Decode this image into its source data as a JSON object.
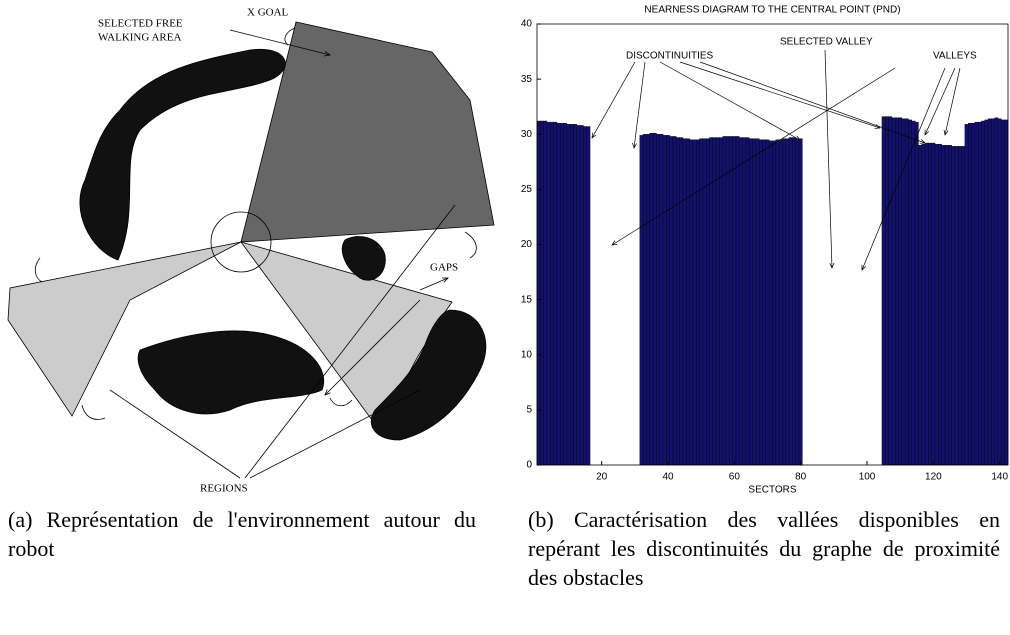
{
  "diagram": {
    "labels": {
      "selected_line1": "SELECTED FREE",
      "selected_line2": "WALKING AREA",
      "goal": "X GOAL",
      "gaps": "GAPS",
      "regions": "REGIONS"
    }
  },
  "captions": [
    "(a) Représentation de l'environnement autour du robot",
    "(b) Caractérisation des vallées disponibles en repérant les discontinuités du graphe de proximité des obstacles"
  ],
  "chart_data": {
    "type": "bar",
    "title": "NEARNESS DIAGRAM TO THE CENTRAL POINT  (PND)",
    "x_label": "SECTORS",
    "annotations": [
      "DISCONTINUITIES",
      "SELECTED VALLEY",
      "VALLEYS"
    ],
    "color": "#12126e",
    "x": [
      1,
      2,
      3,
      4,
      5,
      6,
      7,
      8,
      9,
      10,
      11,
      12,
      13,
      14,
      15,
      16,
      17,
      18,
      19,
      20,
      21,
      22,
      23,
      24,
      25,
      26,
      27,
      28,
      29,
      30,
      31,
      32,
      33,
      34,
      35,
      36,
      37,
      38,
      39,
      40,
      41,
      42,
      43,
      44,
      45,
      46,
      47,
      48,
      49,
      50,
      51,
      52,
      53,
      54,
      55,
      56,
      57,
      58,
      59,
      60,
      61,
      62,
      63,
      64,
      65,
      66,
      67,
      68,
      69,
      70,
      71,
      72,
      73,
      74,
      75,
      76,
      77,
      78,
      79,
      80,
      81,
      82,
      83,
      84,
      85,
      86,
      87,
      88,
      89,
      90,
      91,
      92,
      93,
      94,
      95,
      96,
      97,
      98,
      99,
      100,
      101,
      102,
      103,
      104,
      105,
      106,
      107,
      108,
      109,
      110,
      111,
      112,
      113,
      114,
      115,
      116,
      117,
      118,
      119,
      120,
      121,
      122,
      123,
      124,
      125,
      126,
      127,
      128,
      129,
      130,
      131,
      132,
      133,
      134,
      135,
      136,
      137,
      138,
      139,
      140,
      141,
      142
    ],
    "values": [
      31.2,
      31.2,
      31.2,
      31.1,
      31.1,
      31.1,
      31.0,
      31.0,
      31.0,
      30.9,
      30.9,
      30.9,
      30.8,
      30.8,
      30.7,
      30.7,
      0,
      0,
      0,
      0,
      0,
      0,
      0,
      0,
      0,
      0,
      0,
      0,
      0,
      0,
      0,
      29.9,
      30.0,
      30.0,
      30.1,
      30.1,
      30.0,
      30.0,
      29.9,
      29.9,
      29.8,
      29.8,
      29.7,
      29.7,
      29.6,
      29.6,
      29.5,
      29.5,
      29.5,
      29.6,
      29.6,
      29.6,
      29.7,
      29.7,
      29.7,
      29.7,
      29.8,
      29.8,
      29.8,
      29.8,
      29.8,
      29.7,
      29.7,
      29.7,
      29.6,
      29.6,
      29.6,
      29.5,
      29.5,
      29.5,
      29.4,
      29.4,
      29.5,
      29.5,
      29.6,
      29.6,
      29.7,
      29.7,
      29.6,
      29.6,
      0,
      0,
      0,
      0,
      0,
      0,
      0,
      0,
      0,
      0,
      0,
      0,
      0,
      0,
      0,
      0,
      0,
      0,
      0,
      0,
      0,
      0,
      0,
      0,
      31.6,
      31.6,
      31.6,
      31.5,
      31.5,
      31.5,
      31.4,
      31.4,
      31.3,
      31.2,
      31.1,
      29.0,
      29.1,
      29.2,
      29.2,
      29.2,
      29.1,
      29.1,
      29.0,
      29.0,
      29.0,
      28.9,
      28.9,
      28.9,
      28.9,
      30.9,
      31.0,
      31.0,
      31.1,
      31.1,
      31.2,
      31.3,
      31.4,
      31.4,
      31.5,
      31.4,
      31.3,
      31.3
    ],
    "xlim": [
      0.5,
      142.5
    ],
    "xticks": [
      20,
      40,
      60,
      80,
      100,
      120,
      140
    ],
    "ylim": [
      0,
      40
    ],
    "yticks": [
      0,
      5,
      10,
      15,
      20,
      25,
      30,
      35,
      40
    ]
  }
}
